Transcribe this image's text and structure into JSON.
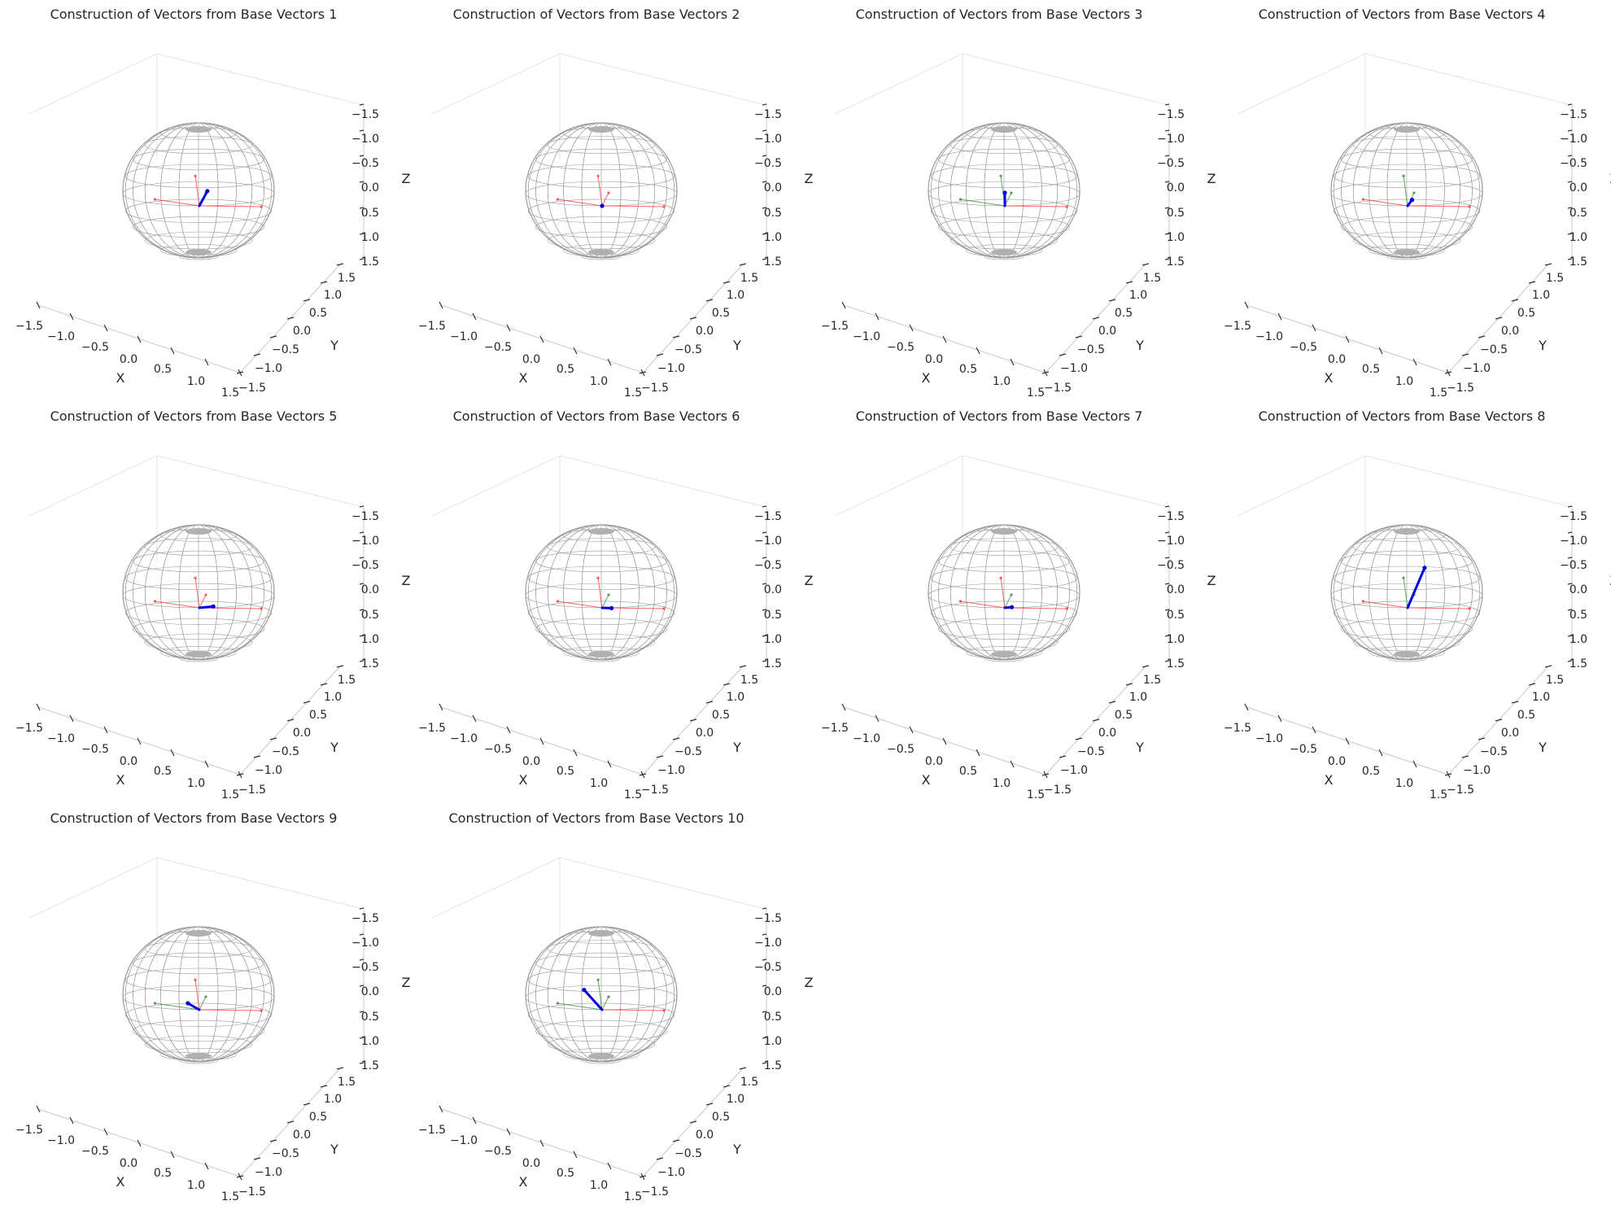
{
  "colors": {
    "background": "#ffffff",
    "sphere": "#9a9a9a",
    "pane_edge": "#dddddd",
    "axis_line": "#c8c8c8",
    "tick_mark": "#333333",
    "text": "#262626",
    "base_red": "#ff3333",
    "base_green": "#2e8b2e",
    "constructed": "#0000dd"
  },
  "chart_data": [
    {
      "type": "line3d",
      "title": "Construction of Vectors from Base Vectors 1",
      "xlabel": "X",
      "ylabel": "Y",
      "zlabel": "Z",
      "xlim": [
        -1.5,
        1.5
      ],
      "ylim": [
        -1.5,
        1.5
      ],
      "zlim": [
        -1.5,
        1.5
      ],
      "ticks": [
        "−1.5",
        "−1.0",
        "−0.5",
        "0.0",
        "0.5",
        "1.0",
        "1.5"
      ],
      "base_vectors": [
        {
          "color": "red",
          "vector": [
            0.6,
            -0.8,
            -0.1
          ]
        },
        {
          "color": "red",
          "vector": [
            -0.45,
            0.55,
            -0.05
          ]
        },
        {
          "color": "red",
          "vector": [
            0.0,
            0.1,
            -0.7
          ]
        },
        {
          "color": "red",
          "vector": [
            0.05,
            -0.1,
            -0.3
          ]
        }
      ],
      "constructed_vector": [
        0.0,
        -0.2,
        -0.3
      ]
    },
    {
      "type": "line3d",
      "title": "Construction of Vectors from Base Vectors 2",
      "xlabel": "X",
      "ylabel": "Y",
      "zlabel": "Z",
      "xlim": [
        -1.5,
        1.5
      ],
      "ylim": [
        -1.5,
        1.5
      ],
      "zlim": [
        -1.5,
        1.5
      ],
      "ticks": [
        "−1.5",
        "−1.0",
        "−0.5",
        "0.0",
        "0.5",
        "1.0",
        "1.5"
      ],
      "base_vectors": [
        {
          "color": "red",
          "vector": [
            0.6,
            -0.8,
            -0.1
          ]
        },
        {
          "color": "red",
          "vector": [
            -0.45,
            0.55,
            -0.05
          ]
        },
        {
          "color": "red",
          "vector": [
            0.0,
            0.1,
            -0.7
          ]
        },
        {
          "color": "red",
          "vector": [
            0.05,
            -0.1,
            -0.3
          ]
        }
      ],
      "constructed_vector": [
        0.0,
        0.0,
        0.0
      ]
    },
    {
      "type": "line3d",
      "title": "Construction of Vectors from Base Vectors 3",
      "xlabel": "X",
      "ylabel": "Y",
      "zlabel": "Z",
      "xlim": [
        -1.5,
        1.5
      ],
      "ylim": [
        -1.5,
        1.5
      ],
      "zlim": [
        -1.5,
        1.5
      ],
      "ticks": [
        "−1.5",
        "−1.0",
        "−0.5",
        "0.0",
        "0.5",
        "1.0",
        "1.5"
      ],
      "base_vectors": [
        {
          "color": "red",
          "vector": [
            0.6,
            -0.8,
            -0.1
          ]
        },
        {
          "color": "green",
          "vector": [
            -0.45,
            0.55,
            -0.05
          ]
        },
        {
          "color": "green",
          "vector": [
            0.0,
            0.1,
            -0.7
          ]
        },
        {
          "color": "green",
          "vector": [
            0.05,
            -0.1,
            -0.3
          ]
        }
      ],
      "constructed_vector": [
        0.0,
        0.0,
        -0.3
      ]
    },
    {
      "type": "line3d",
      "title": "Construction of Vectors from Base Vectors 4",
      "xlabel": "X",
      "ylabel": "Y",
      "zlabel": "Z",
      "xlim": [
        -1.5,
        1.5
      ],
      "ylim": [
        -1.5,
        1.5
      ],
      "zlim": [
        -1.5,
        1.5
      ],
      "ticks": [
        "−1.5",
        "−1.0",
        "−0.5",
        "0.0",
        "0.5",
        "1.0",
        "1.5"
      ],
      "base_vectors": [
        {
          "color": "red",
          "vector": [
            0.6,
            -0.8,
            -0.1
          ]
        },
        {
          "color": "red",
          "vector": [
            -0.45,
            0.55,
            -0.05
          ]
        },
        {
          "color": "green",
          "vector": [
            0.0,
            0.1,
            -0.7
          ]
        },
        {
          "color": "green",
          "vector": [
            0.05,
            -0.1,
            -0.3
          ]
        }
      ],
      "constructed_vector": [
        0.05,
        -0.05,
        -0.15
      ]
    },
    {
      "type": "line3d",
      "title": "Construction of Vectors from Base Vectors 5",
      "xlabel": "X",
      "ylabel": "Y",
      "zlabel": "Z",
      "xlim": [
        -1.5,
        1.5
      ],
      "ylim": [
        -1.5,
        1.5
      ],
      "zlim": [
        -1.5,
        1.5
      ],
      "ticks": [
        "−1.5",
        "−1.0",
        "−0.5",
        "0.0",
        "0.5",
        "1.0",
        "1.5"
      ],
      "base_vectors": [
        {
          "color": "red",
          "vector": [
            0.6,
            -0.8,
            -0.1
          ]
        },
        {
          "color": "red",
          "vector": [
            -0.45,
            0.55,
            -0.05
          ]
        },
        {
          "color": "red",
          "vector": [
            0.0,
            0.1,
            -0.7
          ]
        },
        {
          "color": "red",
          "vector": [
            0.05,
            -0.1,
            -0.3
          ]
        }
      ],
      "constructed_vector": [
        0.2,
        -0.1,
        -0.1
      ]
    },
    {
      "type": "line3d",
      "title": "Construction of Vectors from Base Vectors 6",
      "xlabel": "X",
      "ylabel": "Y",
      "zlabel": "Z",
      "xlim": [
        -1.5,
        1.5
      ],
      "ylim": [
        -1.5,
        1.5
      ],
      "zlim": [
        -1.5,
        1.5
      ],
      "ticks": [
        "−1.5",
        "−1.0",
        "−0.5",
        "0.0",
        "0.5",
        "1.0",
        "1.5"
      ],
      "base_vectors": [
        {
          "color": "red",
          "vector": [
            0.6,
            -0.8,
            -0.1
          ]
        },
        {
          "color": "red",
          "vector": [
            -0.45,
            0.55,
            -0.05
          ]
        },
        {
          "color": "red",
          "vector": [
            0.0,
            0.1,
            -0.7
          ]
        },
        {
          "color": "green",
          "vector": [
            0.05,
            -0.1,
            -0.3
          ]
        }
      ],
      "constructed_vector": [
        0.15,
        -0.05,
        -0.05
      ]
    },
    {
      "type": "line3d",
      "title": "Construction of Vectors from Base Vectors 7",
      "xlabel": "X",
      "ylabel": "Y",
      "zlabel": "Z",
      "xlim": [
        -1.5,
        1.5
      ],
      "ylim": [
        -1.5,
        1.5
      ],
      "zlim": [
        -1.5,
        1.5
      ],
      "ticks": [
        "−1.5",
        "−1.0",
        "−0.5",
        "0.0",
        "0.5",
        "1.0",
        "1.5"
      ],
      "base_vectors": [
        {
          "color": "red",
          "vector": [
            0.6,
            -0.8,
            -0.1
          ]
        },
        {
          "color": "red",
          "vector": [
            -0.45,
            0.55,
            -0.05
          ]
        },
        {
          "color": "red",
          "vector": [
            0.0,
            0.1,
            -0.7
          ]
        },
        {
          "color": "green",
          "vector": [
            0.05,
            -0.1,
            -0.3
          ]
        }
      ],
      "constructed_vector": [
        0.1,
        -0.05,
        -0.05
      ]
    },
    {
      "type": "line3d",
      "title": "Construction of Vectors from Base Vectors 8",
      "xlabel": "X",
      "ylabel": "Y",
      "zlabel": "Z",
      "xlim": [
        -1.5,
        1.5
      ],
      "ylim": [
        -1.5,
        1.5
      ],
      "zlim": [
        -1.5,
        1.5
      ],
      "ticks": [
        "−1.5",
        "−1.0",
        "−0.5",
        "0.0",
        "0.5",
        "1.0",
        "1.5"
      ],
      "base_vectors": [
        {
          "color": "red",
          "vector": [
            0.6,
            -0.8,
            -0.1
          ]
        },
        {
          "color": "red",
          "vector": [
            -0.45,
            0.55,
            -0.05
          ]
        },
        {
          "color": "green",
          "vector": [
            0.0,
            0.1,
            -0.7
          ]
        },
        {
          "color": "green",
          "vector": [
            0.05,
            -0.1,
            -0.3
          ]
        }
      ],
      "constructed_vector": [
        0.1,
        -0.3,
        -0.9
      ]
    },
    {
      "type": "line3d",
      "title": "Construction of Vectors from Base Vectors 9",
      "xlabel": "X",
      "ylabel": "Y",
      "zlabel": "Z",
      "xlim": [
        -1.5,
        1.5
      ],
      "ylim": [
        -1.5,
        1.5
      ],
      "zlim": [
        -1.5,
        1.5
      ],
      "ticks": [
        "−1.5",
        "−1.0",
        "−0.5",
        "0.0",
        "0.5",
        "1.0",
        "1.5"
      ],
      "base_vectors": [
        {
          "color": "red",
          "vector": [
            0.6,
            -0.8,
            -0.1
          ]
        },
        {
          "color": "green",
          "vector": [
            -0.45,
            0.55,
            -0.05
          ]
        },
        {
          "color": "red",
          "vector": [
            0.0,
            0.1,
            -0.7
          ]
        },
        {
          "color": "green",
          "vector": [
            0.05,
            -0.1,
            -0.3
          ]
        }
      ],
      "constructed_vector": [
        -0.15,
        0.1,
        -0.1
      ]
    },
    {
      "type": "line3d",
      "title": "Construction of Vectors from Base Vectors 10",
      "xlabel": "X",
      "ylabel": "Y",
      "zlabel": "Z",
      "xlim": [
        -1.5,
        1.5
      ],
      "ylim": [
        -1.5,
        1.5
      ],
      "zlim": [
        -1.5,
        1.5
      ],
      "ticks": [
        "−1.5",
        "−1.0",
        "−0.5",
        "0.0",
        "0.5",
        "1.0",
        "1.5"
      ],
      "base_vectors": [
        {
          "color": "red",
          "vector": [
            0.6,
            -0.8,
            -0.1
          ]
        },
        {
          "color": "green",
          "vector": [
            -0.45,
            0.55,
            -0.05
          ]
        },
        {
          "color": "green",
          "vector": [
            0.0,
            0.1,
            -0.7
          ]
        },
        {
          "color": "green",
          "vector": [
            0.05,
            -0.1,
            -0.3
          ]
        }
      ],
      "constructed_vector": [
        -0.2,
        0.2,
        -0.4
      ]
    }
  ]
}
